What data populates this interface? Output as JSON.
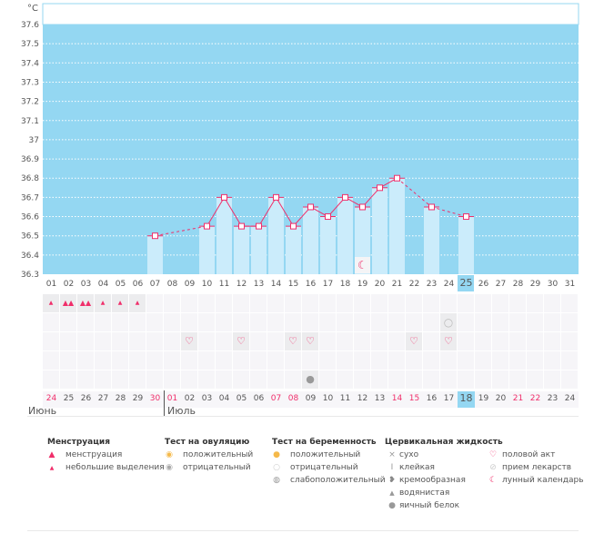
{
  "chart_data": {
    "type": "bar",
    "ylabel": "°C",
    "ylim": [
      36.3,
      37.6
    ],
    "yticks": [
      "36.3",
      "36.4",
      "36.5",
      "36.6",
      "36.7",
      "36.8",
      "36.9",
      "37",
      "37.1",
      "37.2",
      "37.3",
      "37.4",
      "37.5",
      "37.6"
    ],
    "x": [
      "01",
      "02",
      "03",
      "04",
      "05",
      "06",
      "07",
      "08",
      "09",
      "10",
      "11",
      "12",
      "13",
      "14",
      "15",
      "16",
      "17",
      "18",
      "19",
      "20",
      "21",
      "22",
      "23",
      "24",
      "25",
      "26",
      "27",
      "28",
      "29",
      "30",
      "31"
    ],
    "temperatures": {
      "07": 36.5,
      "10": 36.55,
      "11": 36.7,
      "12": 36.55,
      "13": 36.55,
      "14": 36.7,
      "15": 36.55,
      "16": 36.65,
      "17": 36.6,
      "18": 36.7,
      "19": 36.65,
      "20": 36.75,
      "21": 36.8,
      "23": 36.65,
      "25": 36.6
    },
    "highlight_day": "25",
    "moon_day": "19"
  },
  "rows": {
    "menstruation": {
      "01": "small",
      "02": "big",
      "03": "big",
      "04": "small",
      "05": "small",
      "06": "small"
    },
    "pregnancy_test": {
      "24": "negative"
    },
    "intercourse": [
      "09",
      "12",
      "15",
      "16",
      "22",
      "24"
    ],
    "cervical": {
      "16": "egg-white"
    }
  },
  "dates": [
    {
      "d": "24",
      "red": true
    },
    {
      "d": "25"
    },
    {
      "d": "26"
    },
    {
      "d": "27"
    },
    {
      "d": "28"
    },
    {
      "d": "29"
    },
    {
      "d": "30",
      "red": true
    },
    {
      "d": "01",
      "red": true
    },
    {
      "d": "02"
    },
    {
      "d": "03"
    },
    {
      "d": "04"
    },
    {
      "d": "05"
    },
    {
      "d": "06"
    },
    {
      "d": "07",
      "red": true
    },
    {
      "d": "08",
      "red": true
    },
    {
      "d": "09"
    },
    {
      "d": "10"
    },
    {
      "d": "11"
    },
    {
      "d": "12"
    },
    {
      "d": "13"
    },
    {
      "d": "14",
      "red": true
    },
    {
      "d": "15",
      "red": true
    },
    {
      "d": "16"
    },
    {
      "d": "17"
    },
    {
      "d": "18",
      "today": true
    },
    {
      "d": "19"
    },
    {
      "d": "20"
    },
    {
      "d": "21",
      "red": true
    },
    {
      "d": "22",
      "red": true
    },
    {
      "d": "23"
    },
    {
      "d": "24"
    }
  ],
  "months": {
    "june": "Июнь",
    "july": "Июль"
  },
  "legend": {
    "menstruation": {
      "title": "Менструация",
      "items": [
        "менструация",
        "небольшие выделения"
      ]
    },
    "ovulation": {
      "title": "Тест на овуляцию",
      "items": [
        "положительный",
        "отрицательный"
      ]
    },
    "pregnancy": {
      "title": "Тест на беременность",
      "items": [
        "положительный",
        "отрицательный",
        "слабоположительный"
      ]
    },
    "cervical": {
      "title": "Цервикальная жидкость",
      "items": [
        "сухо",
        "клейкая",
        "кремообразная",
        "водянистая",
        "яичный белок"
      ]
    },
    "other": {
      "items": [
        "половой акт",
        "прием лекарств",
        "лунный календарь"
      ]
    }
  },
  "colors": {
    "plot": "#94d7f2",
    "bar": "#cbecfb",
    "line": "#f02e6a",
    "red": "#f02e6a"
  }
}
